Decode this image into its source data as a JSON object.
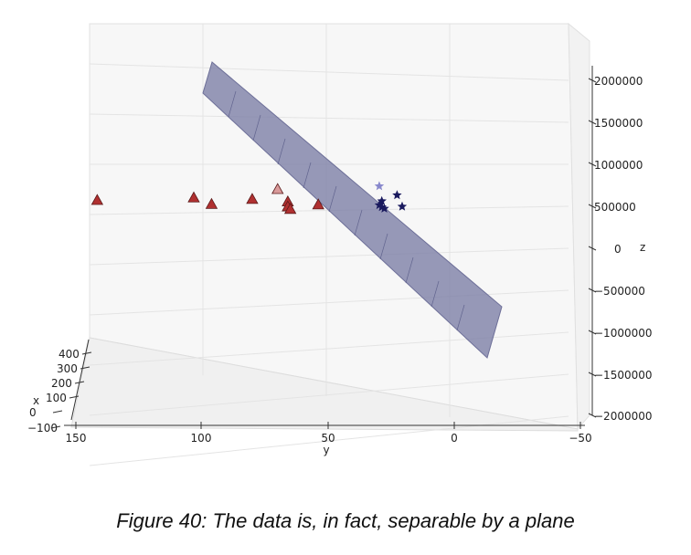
{
  "caption": "Figure 40: The data is, in fact, separable by a plane",
  "chart_data": {
    "type": "scatter",
    "projection": "3d",
    "title": "",
    "axes": {
      "x": {
        "label": "x",
        "ticks": [
          "400",
          "300",
          "200",
          "100",
          "0",
          "−100"
        ]
      },
      "y": {
        "label": "y",
        "ticks": [
          "150",
          "100",
          "50",
          "0",
          "−50"
        ],
        "range": [
          150,
          -50
        ]
      },
      "z": {
        "label": "z",
        "ticks": [
          "2000000",
          "1500000",
          "1000000",
          "500000",
          "0",
          "−500000",
          "−1000000",
          "−1500000",
          "−2000000"
        ],
        "range": [
          -2000000,
          2000000
        ]
      }
    },
    "grid": true,
    "colors": {
      "triangles": "#b03030",
      "triangles_light": "#d99a9a",
      "stars": "#1a1a5e",
      "stars_light": "#8888cc",
      "plane": "#7d7fa6"
    },
    "series": [
      {
        "marker": "triangle",
        "points": [
          {
            "y": 138,
            "z": 400000
          },
          {
            "y": 100,
            "z": 450000
          },
          {
            "y": 93,
            "z": 320000
          },
          {
            "y": 77,
            "z": 420000
          },
          {
            "y": 67,
            "z": 620000,
            "light": true
          },
          {
            "y": 63,
            "z": 370000
          },
          {
            "y": 63,
            "z": 270000
          },
          {
            "y": 62,
            "z": 220000
          },
          {
            "y": 51,
            "z": 310000
          }
        ]
      },
      {
        "marker": "star",
        "points": [
          {
            "y": 27,
            "z": 680000,
            "light": true
          },
          {
            "y": 20,
            "z": 500000
          },
          {
            "y": 26,
            "z": 380000
          },
          {
            "y": 27,
            "z": 300000
          },
          {
            "y": 26,
            "z": 260000
          },
          {
            "y": 18,
            "z": 270000
          },
          {
            "y": 25,
            "z": 230000
          }
        ]
      }
    ],
    "plane": {
      "description_visible": false
    }
  }
}
